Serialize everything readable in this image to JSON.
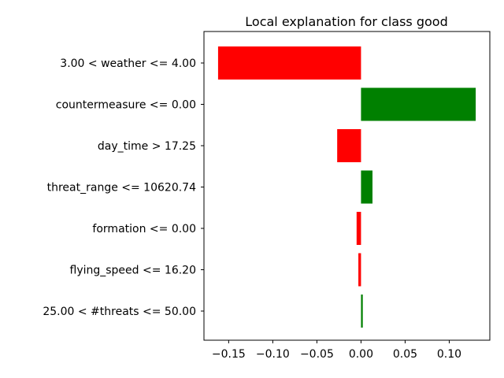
{
  "chart_data": {
    "type": "bar",
    "orientation": "horizontal",
    "title": "Local explanation for class good",
    "xlabel": "",
    "ylabel": "",
    "categories": [
      "3.00 < weather <= 4.00",
      "countermeasure <= 0.00",
      "day_time > 17.25",
      "threat_range <= 10620.74",
      "formation <= 0.00",
      "flying_speed <= 16.20",
      "25.00 < #threats <= 50.00"
    ],
    "values": [
      -0.162,
      0.13,
      -0.027,
      0.013,
      -0.005,
      -0.003,
      0.002
    ],
    "xlim": [
      -0.178,
      0.146
    ],
    "xticks": [
      -0.15,
      -0.1,
      -0.05,
      0.0,
      0.05,
      0.1
    ],
    "xtick_labels": [
      "−0.15",
      "−0.10",
      "−0.05",
      "0.00",
      "0.05",
      "0.10"
    ],
    "colors": {
      "positive": "#008000",
      "negative": "#ff0000"
    },
    "grid": false,
    "legend": "none"
  }
}
